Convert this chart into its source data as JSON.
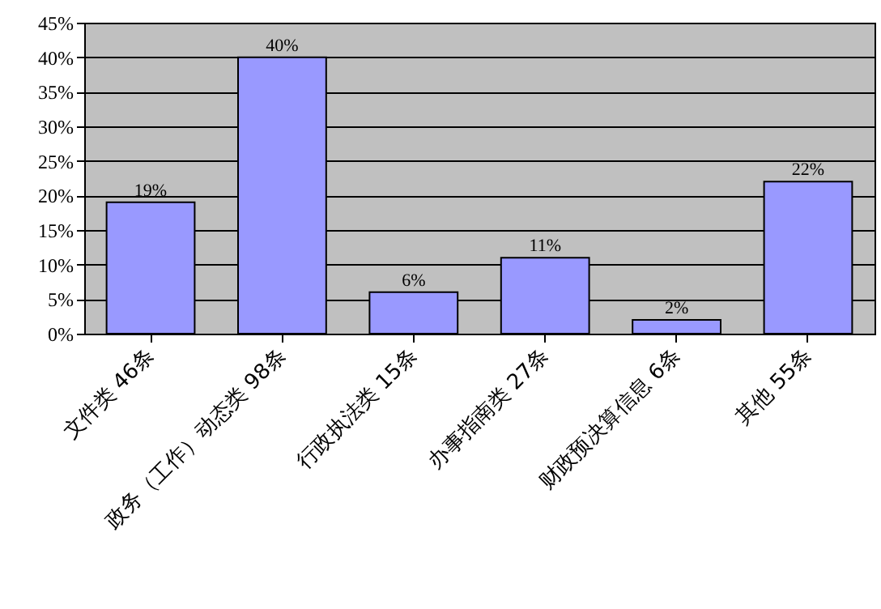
{
  "chart_data": {
    "type": "bar",
    "categories": [
      "文件类 46条",
      "政务（工作）动态类 98条",
      "行政执法类 15条",
      "办事指南类 27条",
      "财政预决算信息 6条",
      "其他 55条"
    ],
    "values": [
      19,
      40,
      6,
      11,
      2,
      22
    ],
    "value_labels": [
      "19%",
      "40%",
      "6%",
      "11%",
      "2%",
      "22%"
    ],
    "color": "#9999ff",
    "ylim": [
      0,
      45
    ],
    "yticks": [
      {
        "value": 0,
        "label": "0%"
      },
      {
        "value": 5,
        "label": "5%"
      },
      {
        "value": 10,
        "label": "10%"
      },
      {
        "value": 15,
        "label": "15%"
      },
      {
        "value": 20,
        "label": "20%"
      },
      {
        "value": 25,
        "label": "25%"
      },
      {
        "value": 30,
        "label": "30%"
      },
      {
        "value": 35,
        "label": "35%"
      },
      {
        "value": 40,
        "label": "40%"
      },
      {
        "value": 45,
        "label": "45%"
      }
    ],
    "grid": "y"
  }
}
